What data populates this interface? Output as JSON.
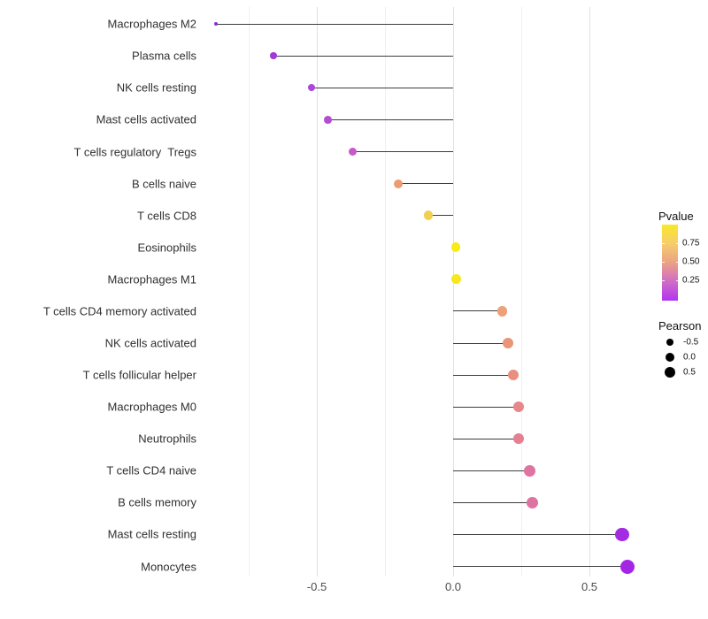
{
  "figure": {
    "background": "#ffffff",
    "axis": {
      "x_major_ticks": [
        {
          "value": -0.5,
          "label": "-0.5"
        },
        {
          "value": 0.0,
          "label": "0.0"
        },
        {
          "value": 0.5,
          "label": "0.5"
        }
      ],
      "x_minor_ticks": [
        -0.75,
        -0.25,
        0.25
      ],
      "grid_major_color": "#e2e2e2",
      "grid_minor_color": "#f0f0f0",
      "tick_label_color": "#4d4d4d"
    },
    "legend_pvalue": {
      "title": "Pvalue",
      "tick_labels": [
        "0.75",
        "0.50",
        "0.25"
      ],
      "gradient_stops": [
        "#f9e926",
        "#f6cd6e",
        "#eba183",
        "#d06cc8",
        "#b234f0"
      ]
    },
    "legend_pearson": {
      "title": "Pearson",
      "items": [
        {
          "label": "-0.5",
          "r": 4.3
        },
        {
          "label": "0.0",
          "r": 5.3
        },
        {
          "label": "0.5",
          "r": 6.4
        }
      ]
    }
  },
  "chart_data": {
    "type": "scatter",
    "variant": "horizontal-lollipop",
    "title": "",
    "xlabel": "",
    "ylabel": "",
    "xlim": [
      -0.91,
      0.72
    ],
    "grid": true,
    "legend_position": "right",
    "categories": [
      "Macrophages M2",
      "Plasma cells",
      "NK cells resting",
      "Mast cells activated",
      "T cells regulatory  Tregs",
      "B cells naive",
      "T cells CD8",
      "Eosinophils",
      "Macrophages M1",
      "T cells CD4 memory activated",
      "NK cells activated",
      "T cells follicular helper",
      "Macrophages M0",
      "Neutrophils",
      "T cells CD4 naive",
      "B cells memory",
      "Mast cells resting",
      "Monocytes"
    ],
    "series": [
      {
        "name": "Pearson",
        "values": [
          -0.87,
          -0.66,
          -0.52,
          -0.46,
          -0.37,
          -0.2,
          -0.09,
          0.01,
          0.01,
          0.18,
          0.2,
          0.22,
          0.24,
          0.24,
          0.28,
          0.29,
          0.62,
          0.64
        ]
      }
    ],
    "point_colors": [
      "#8C2BD9",
      "#A238D6",
      "#AC48D8",
      "#B74CD0",
      "#C55AC6",
      "#EC9B72",
      "#F0D04E",
      "#F8EB16",
      "#F7E71D",
      "#EDA276",
      "#EA9578",
      "#EA8F80",
      "#E8868B",
      "#E67F92",
      "#DE74A0",
      "#DE73A2",
      "#A32BE2",
      "#A326E6"
    ],
    "point_radii": [
      2.2,
      3.8,
      4.1,
      4.3,
      4.5,
      5.0,
      5.2,
      5.4,
      5.5,
      5.9,
      6.0,
      6.1,
      6.1,
      6.1,
      6.4,
      6.4,
      7.8,
      8.0
    ]
  }
}
